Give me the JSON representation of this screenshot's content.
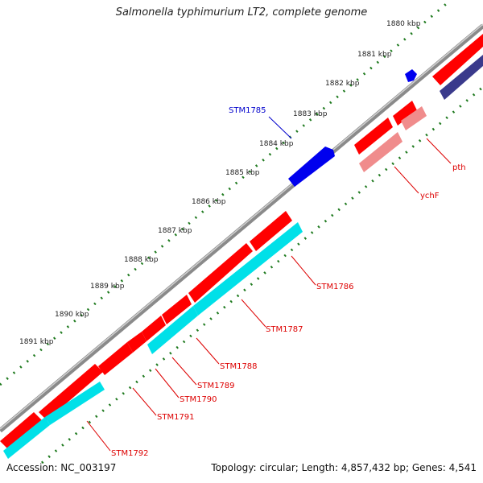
{
  "title": "Salmonella typhimurium LT2, complete genome",
  "footer": {
    "accession": "Accession: NC_003197",
    "summary": "Topology: circular; Length: 4,857,432 bp; Genes: 4,541"
  },
  "colors": {
    "backbone": "#8a8a8a",
    "tick": "#1f7a1f",
    "gene_red": "#ff0000",
    "gene_pink": "#f08c8c",
    "gene_cyan": "#00e0e8",
    "gene_blue": "#0000ee",
    "gene_navy": "#3a3a8c",
    "label_red": "#dd0000",
    "label_blue": "#0000cc"
  },
  "kbp_labels": [
    "1880 kbp",
    "1881 kbp",
    "1882 kbp",
    "1883 kbp",
    "1884 kbp",
    "1885 kbp",
    "1886 kbp",
    "1887 kbp",
    "1888 kbp",
    "1889 kbp",
    "1890 kbp",
    "1891 kbp"
  ],
  "gene_labels": [
    {
      "name": "STM1785",
      "color": "blue"
    },
    {
      "name": "pth",
      "color": "red"
    },
    {
      "name": "ychF",
      "color": "red"
    },
    {
      "name": "STM1786",
      "color": "red"
    },
    {
      "name": "STM1787",
      "color": "red"
    },
    {
      "name": "STM1788",
      "color": "red"
    },
    {
      "name": "STM1789",
      "color": "red"
    },
    {
      "name": "STM1790",
      "color": "red"
    },
    {
      "name": "STM1791",
      "color": "red"
    },
    {
      "name": "STM1792",
      "color": "red"
    }
  ]
}
